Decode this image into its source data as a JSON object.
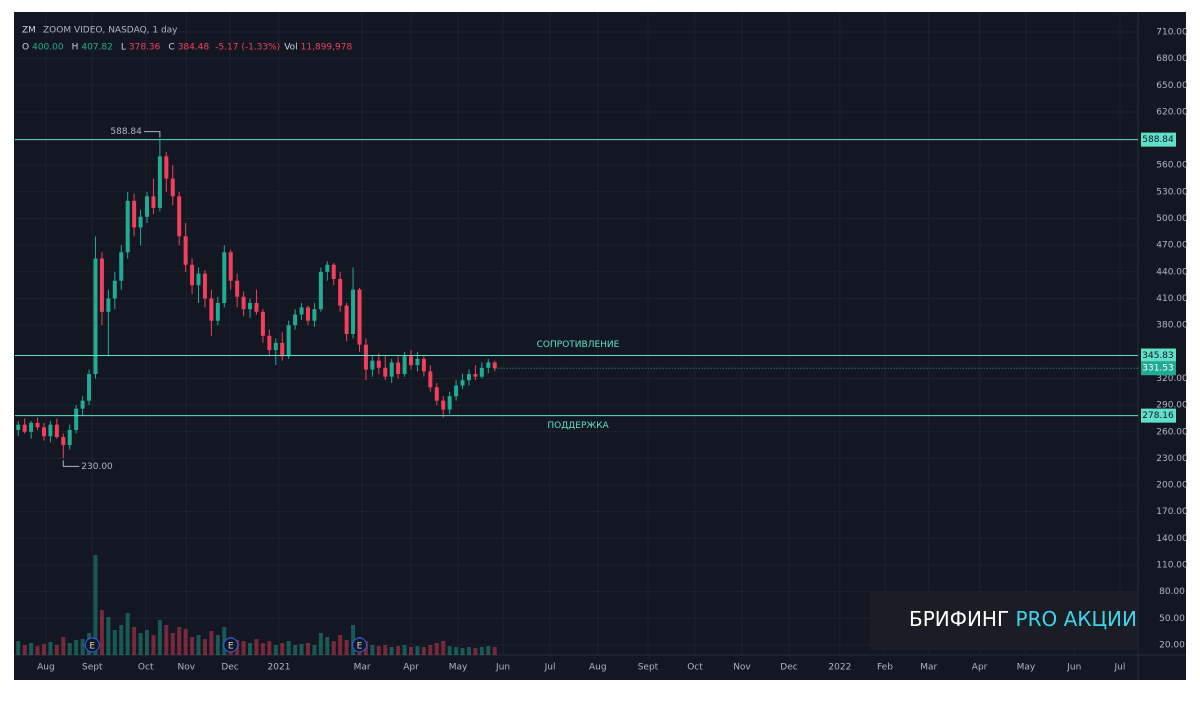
{
  "chart_data": {
    "type": "candlestick",
    "symbol": "ZM",
    "name": "ZOOM VIDEO, NASDAQ, 1 day",
    "ohlc_legend": [
      {
        "key": "O",
        "value": "400.00"
      },
      {
        "key": "H",
        "value": "407.82"
      },
      {
        "key": "L",
        "value": "378.36"
      },
      {
        "key": "C",
        "value": "384.48"
      }
    ],
    "change": "-5.17 (-1.33%)",
    "volume_key": "Vol",
    "volume_value": "11,899,978",
    "up_color": "#22ab94",
    "down_color": "#f23f5e",
    "open": [
      262,
      268,
      260,
      270,
      265,
      255,
      268,
      254,
      245,
      262,
      286,
      295,
      325,
      455,
      395,
      410,
      430,
      462,
      520,
      490,
      502,
      525,
      512,
      570,
      545,
      525,
      480,
      448,
      425,
      438,
      410,
      385,
      405,
      462,
      430,
      412,
      398,
      405,
      395,
      368,
      352,
      360,
      345,
      380,
      392,
      400,
      385,
      398,
      440,
      448,
      432,
      402,
      370,
      420,
      358,
      330,
      340,
      332,
      322,
      338,
      325,
      345,
      335,
      342,
      328,
      310,
      295,
      285,
      300,
      312,
      318,
      325,
      322,
      332,
      338
    ],
    "high": [
      272,
      275,
      272,
      276,
      270,
      272,
      275,
      258,
      268,
      290,
      300,
      330,
      480,
      462,
      420,
      440,
      470,
      530,
      528,
      510,
      530,
      545,
      588.84,
      575,
      560,
      530,
      495,
      455,
      445,
      442,
      420,
      412,
      470,
      465,
      438,
      418,
      410,
      420,
      398,
      375,
      365,
      372,
      385,
      398,
      405,
      402,
      405,
      445,
      452,
      450,
      440,
      405,
      445,
      422,
      365,
      345,
      348,
      345,
      342,
      345,
      350,
      352,
      350,
      345,
      335,
      315,
      300,
      305,
      318,
      325,
      330,
      335,
      338,
      342,
      340
    ],
    "low": [
      255,
      258,
      252,
      262,
      250,
      248,
      252,
      230,
      240,
      258,
      278,
      290,
      320,
      380,
      345,
      398,
      420,
      455,
      480,
      470,
      495,
      505,
      508,
      530,
      515,
      470,
      440,
      415,
      405,
      400,
      368,
      380,
      400,
      420,
      400,
      390,
      388,
      392,
      360,
      345,
      335,
      340,
      342,
      375,
      386,
      380,
      378,
      395,
      430,
      425,
      395,
      362,
      365,
      350,
      318,
      322,
      325,
      318,
      315,
      320,
      322,
      330,
      328,
      322,
      305,
      290,
      276,
      280,
      295,
      308,
      312,
      318,
      320,
      326,
      328
    ],
    "close": [
      268,
      260,
      270,
      265,
      255,
      268,
      254,
      245,
      262,
      286,
      295,
      325,
      455,
      395,
      410,
      430,
      462,
      520,
      490,
      502,
      525,
      512,
      570,
      545,
      525,
      480,
      448,
      425,
      438,
      410,
      385,
      405,
      462,
      430,
      412,
      398,
      405,
      395,
      368,
      352,
      360,
      345,
      380,
      392,
      400,
      385,
      398,
      440,
      448,
      432,
      402,
      370,
      420,
      358,
      330,
      340,
      332,
      322,
      338,
      325,
      345,
      335,
      342,
      328,
      310,
      295,
      285,
      300,
      312,
      318,
      325,
      322,
      332,
      338,
      331.53
    ],
    "volume": [
      14,
      10,
      12,
      9,
      11,
      13,
      10,
      18,
      12,
      15,
      16,
      22,
      100,
      45,
      38,
      25,
      30,
      42,
      28,
      22,
      25,
      20,
      35,
      30,
      22,
      28,
      26,
      18,
      20,
      16,
      24,
      20,
      28,
      18,
      15,
      14,
      12,
      16,
      12,
      14,
      10,
      12,
      14,
      10,
      11,
      12,
      10,
      22,
      18,
      14,
      20,
      15,
      30,
      18,
      14,
      10,
      9,
      10,
      8,
      9,
      10,
      8,
      9,
      8,
      10,
      12,
      14,
      9,
      8,
      7,
      8,
      7,
      8,
      9,
      8
    ],
    "ylim": [
      8.7,
      732.5
    ],
    "yticks": [
      {
        "value": 20,
        "label": "20.00"
      },
      {
        "value": 50,
        "label": "50.00"
      },
      {
        "value": 80,
        "label": "80.00"
      },
      {
        "value": 110,
        "label": "110.00"
      },
      {
        "value": 140,
        "label": "140.00"
      },
      {
        "value": 170,
        "label": "170.00"
      },
      {
        "value": 200,
        "label": "200.00"
      },
      {
        "value": 230,
        "label": "230.00"
      },
      {
        "value": 260,
        "label": "260.00"
      },
      {
        "value": 290,
        "label": "290.00"
      },
      {
        "value": 320,
        "label": "320.00"
      },
      {
        "value": 380,
        "label": "380.00"
      },
      {
        "value": 410,
        "label": "410.00"
      },
      {
        "value": 440,
        "label": "440.00"
      },
      {
        "value": 470,
        "label": "470.00"
      },
      {
        "value": 500,
        "label": "500.00"
      },
      {
        "value": 530,
        "label": "530.00"
      },
      {
        "value": 560,
        "label": "560.00"
      },
      {
        "value": 620,
        "label": "620.00"
      },
      {
        "value": 650,
        "label": "650.00"
      },
      {
        "value": 680,
        "label": "680.00"
      },
      {
        "value": 710,
        "label": "710.00"
      }
    ],
    "xlim": [
      -0.5,
      173.9
    ],
    "xticks": [
      {
        "value": 4.3,
        "label": "Aug"
      },
      {
        "value": 11.5,
        "label": "Sept"
      },
      {
        "value": 19.8,
        "label": "Oct"
      },
      {
        "value": 26.1,
        "label": "Nov"
      },
      {
        "value": 32.9,
        "label": "Dec"
      },
      {
        "value": 40.5,
        "label": "2021"
      },
      {
        "value": 53.4,
        "label": "Mar"
      },
      {
        "value": 61,
        "label": "Apr"
      },
      {
        "value": 68.3,
        "label": "May"
      },
      {
        "value": 75.3,
        "label": "Jun"
      },
      {
        "value": 82.6,
        "label": "Jul"
      },
      {
        "value": 90,
        "label": "Aug"
      },
      {
        "value": 97.8,
        "label": "Sept"
      },
      {
        "value": 105.1,
        "label": "Oct"
      },
      {
        "value": 112.4,
        "label": "Nov"
      },
      {
        "value": 119.7,
        "label": "Dec"
      },
      {
        "value": 127.6,
        "label": "2022"
      },
      {
        "value": 134.6,
        "label": "Feb"
      },
      {
        "value": 141.4,
        "label": "Mar"
      },
      {
        "value": 149.3,
        "label": "Apr"
      },
      {
        "value": 156.5,
        "label": "May"
      },
      {
        "value": 164,
        "label": "Jun"
      },
      {
        "value": 171.1,
        "label": "Jul"
      }
    ],
    "grid": true,
    "hlines": [
      {
        "value": 588.84,
        "label": null
      },
      {
        "value": 345.83,
        "label": "СОПРОТИВЛЕНИЕ"
      },
      {
        "value": 278.16,
        "label": "ПОДДЕРЖКА"
      }
    ],
    "hline_color": "#5fe0c8",
    "last_price": 331.53,
    "high_label": {
      "value": 588.84,
      "label": "588.84"
    },
    "low_label": {
      "value": 230,
      "label": "230.00"
    },
    "earnings": [
      "E",
      "E",
      "E"
    ],
    "watermark": {
      "first": "БРИФИНГ",
      "second": "PRO АКЦИИ"
    }
  }
}
